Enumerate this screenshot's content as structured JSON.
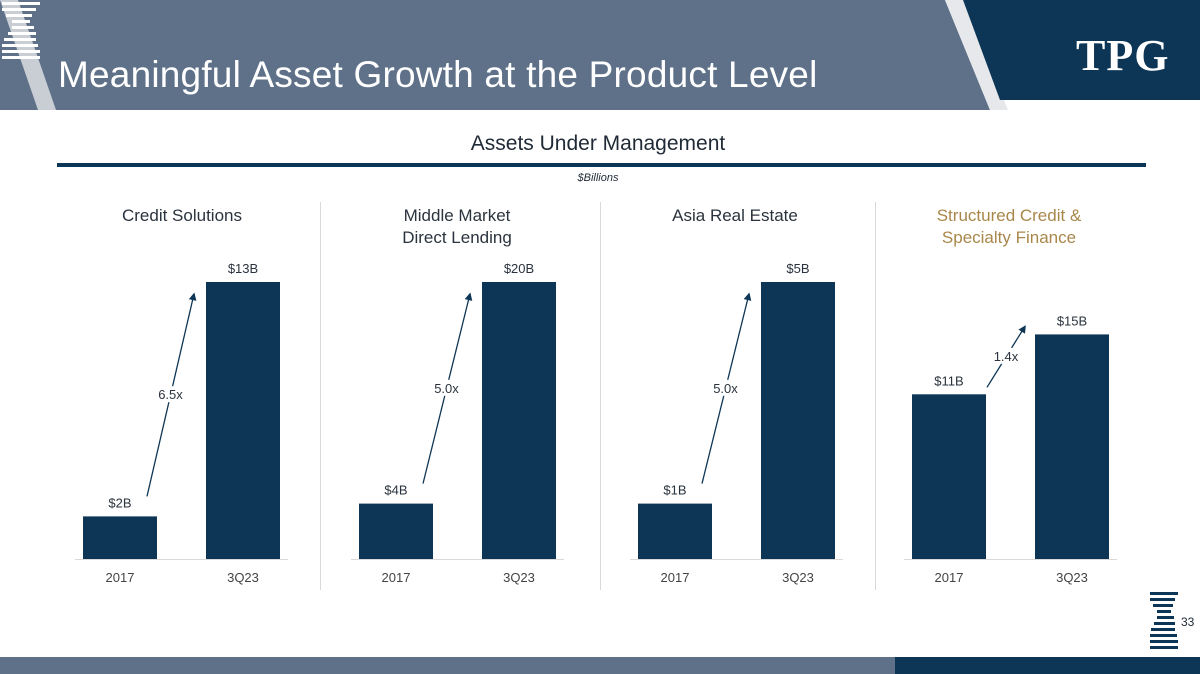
{
  "header": {
    "title": "Meaningful Asset Growth at the Product Level",
    "brand": "TPG"
  },
  "section": {
    "title": "Assets Under Management",
    "units": "$Billions"
  },
  "footer": {
    "page_number": "33"
  },
  "colors": {
    "bar": "#0d3656",
    "header_panel": "#5e7189",
    "accent": "#a8874a",
    "arrow": "#0d3656"
  },
  "chart_data": [
    {
      "type": "bar",
      "title": "Credit Solutions",
      "categories": [
        "2017",
        "3Q23"
      ],
      "values": [
        2,
        13
      ],
      "labels": [
        "$2B",
        "$13B"
      ],
      "multiple": "6.5x",
      "ylim": [
        0,
        13
      ]
    },
    {
      "type": "bar",
      "title": "Middle Market Direct Lending",
      "categories": [
        "2017",
        "3Q23"
      ],
      "values": [
        4,
        20
      ],
      "labels": [
        "$4B",
        "$20B"
      ],
      "multiple": "5.0x",
      "ylim": [
        0,
        20
      ]
    },
    {
      "type": "bar",
      "title": "Asia Real Estate",
      "categories": [
        "2017",
        "3Q23"
      ],
      "values": [
        1,
        5
      ],
      "labels": [
        "$1B",
        "$5B"
      ],
      "multiple": "5.0x",
      "ylim": [
        0,
        5
      ]
    },
    {
      "type": "bar",
      "title": "Structured Credit & Specialty Finance",
      "categories": [
        "2017",
        "3Q23"
      ],
      "values": [
        11,
        15
      ],
      "labels": [
        "$11B",
        "$15B"
      ],
      "multiple": "1.4x",
      "ylim": [
        0,
        18.5
      ]
    }
  ]
}
